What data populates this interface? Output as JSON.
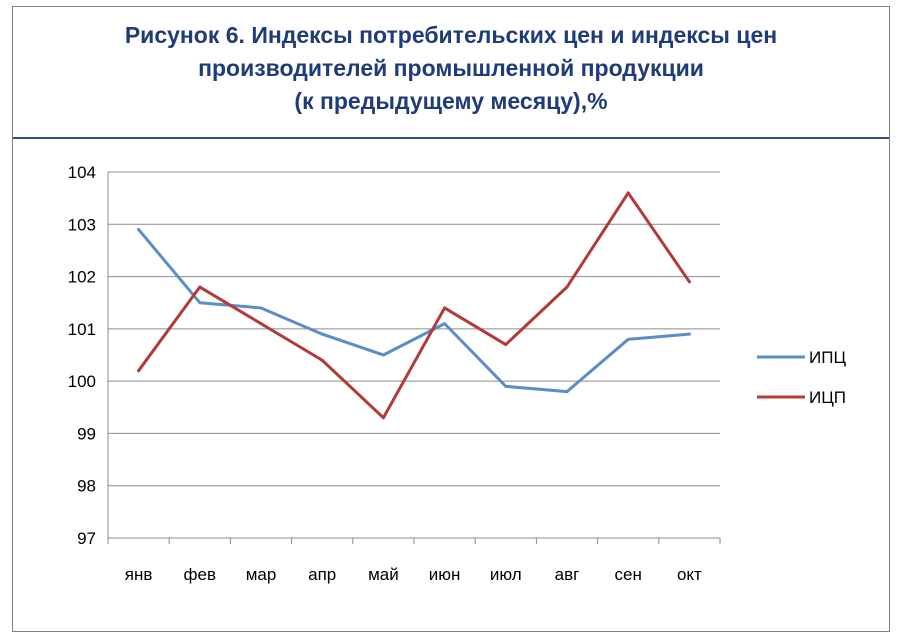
{
  "chart_data": {
    "type": "line",
    "title": [
      "Рисунок 6. Индексы потребительских цен и индексы цен",
      "производителей промышленной продукции",
      "(к предыдущему месяцу),%"
    ],
    "categories": [
      "янв",
      "фев",
      "мар",
      "апр",
      "май",
      "июн",
      "июл",
      "авг",
      "сен",
      "окт"
    ],
    "series": [
      {
        "name": "ИПЦ",
        "color": "#5b8ec9",
        "values": [
          102.9,
          101.5,
          101.4,
          100.9,
          100.5,
          101.1,
          99.9,
          99.8,
          100.8,
          100.9
        ]
      },
      {
        "name": "ИЦП",
        "color": "#b23a38",
        "values": [
          100.2,
          101.8,
          101.1,
          100.4,
          99.3,
          101.4,
          100.7,
          101.8,
          103.6,
          101.9
        ]
      }
    ],
    "ylim": [
      97,
      104
    ],
    "yticks": [
      97,
      98,
      99,
      100,
      101,
      102,
      103,
      104
    ],
    "grid": true,
    "legend": "right",
    "xlabel": "",
    "ylabel": ""
  }
}
